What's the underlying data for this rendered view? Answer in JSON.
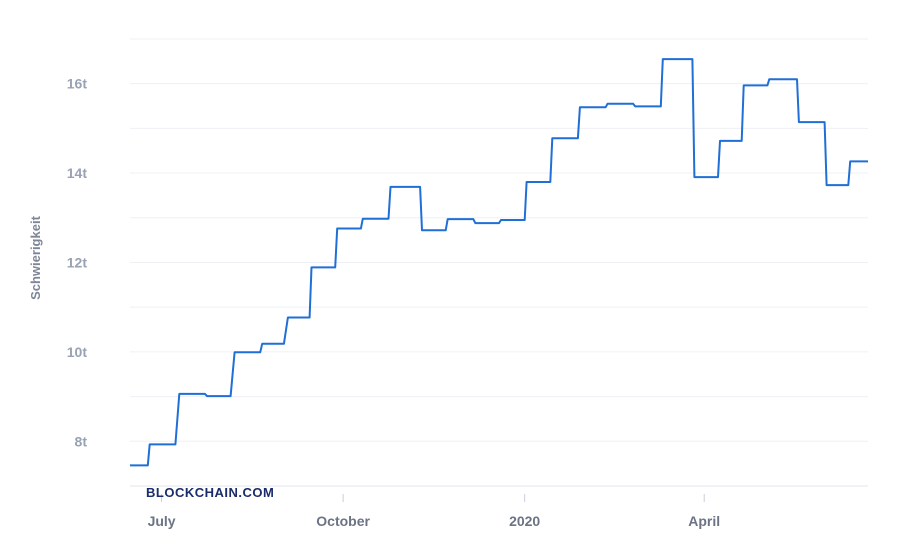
{
  "chart_data": {
    "type": "line",
    "title": "",
    "xlabel": "",
    "ylabel": "Schwierigkeit",
    "watermark": "BLOCKCHAIN.COM",
    "y_unit_suffix": "t",
    "ylim": [
      7.0,
      17.2
    ],
    "yticks": [
      {
        "value": 8,
        "label": "8t"
      },
      {
        "value": 10,
        "label": "10t"
      },
      {
        "value": 12,
        "label": "12t"
      },
      {
        "value": 14,
        "label": "14t"
      },
      {
        "value": 16,
        "label": "16t"
      }
    ],
    "xlim": [
      "2019-06-15",
      "2020-06-23"
    ],
    "xticks": [
      {
        "date": "2019-07-01",
        "label": "July"
      },
      {
        "date": "2019-10-01",
        "label": "October"
      },
      {
        "date": "2020-01-01",
        "label": "2020"
      },
      {
        "date": "2020-04-01",
        "label": "April"
      }
    ],
    "grid": true,
    "line_color": "#1f6fd6",
    "series": [
      {
        "x": [
          "2019-06-15",
          "2019-06-24",
          "2019-06-25",
          "2019-07-08",
          "2019-07-10",
          "2019-07-23",
          "2019-07-24",
          "2019-08-05",
          "2019-08-07",
          "2019-08-20",
          "2019-08-21",
          "2019-09-01",
          "2019-09-03",
          "2019-09-14",
          "2019-09-15",
          "2019-09-27",
          "2019-09-28",
          "2019-10-10",
          "2019-10-11",
          "2019-10-24",
          "2019-10-25",
          "2019-11-09",
          "2019-11-10",
          "2019-11-22",
          "2019-11-23",
          "2019-12-06",
          "2019-12-07",
          "2019-12-19",
          "2019-12-20",
          "2020-01-01",
          "2020-01-02",
          "2020-01-14",
          "2020-01-15",
          "2020-01-28",
          "2020-01-29",
          "2020-02-11",
          "2020-02-12",
          "2020-02-25",
          "2020-02-26",
          "2020-03-10",
          "2020-03-11",
          "2020-03-26",
          "2020-03-27",
          "2020-04-08",
          "2020-04-09",
          "2020-04-20",
          "2020-04-21",
          "2020-05-03",
          "2020-05-04",
          "2020-05-18",
          "2020-05-19",
          "2020-06-01",
          "2020-06-02",
          "2020-06-13",
          "2020-06-14",
          "2020-06-23"
        ],
        "values": [
          7.46,
          7.46,
          7.93,
          7.93,
          9.06,
          9.06,
          9.01,
          9.01,
          9.99,
          9.99,
          10.18,
          10.18,
          10.77,
          10.77,
          11.89,
          11.89,
          12.76,
          12.76,
          12.98,
          12.98,
          13.69,
          13.69,
          12.72,
          12.72,
          12.97,
          12.97,
          12.88,
          12.88,
          12.95,
          12.95,
          13.8,
          13.8,
          14.78,
          14.78,
          15.47,
          15.47,
          15.55,
          15.55,
          15.49,
          15.49,
          16.55,
          16.55,
          13.91,
          13.91,
          14.72,
          14.72,
          15.96,
          15.96,
          16.1,
          16.1,
          15.14,
          15.14,
          13.73,
          13.73,
          14.26,
          14.26
        ]
      }
    ]
  }
}
